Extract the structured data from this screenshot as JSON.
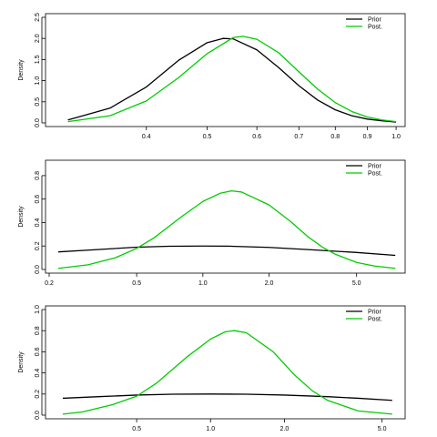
{
  "chart_data": [
    {
      "type": "line",
      "ylabel": "Density",
      "xlim": [
        0.28,
        1.02
      ],
      "ylim": [
        0,
        2.5
      ],
      "x_scale": "log",
      "xticks": [
        0.4,
        0.5,
        0.6,
        0.7,
        0.8,
        0.9,
        1.0
      ],
      "xtick_labels": [
        "0.4",
        "0.5",
        "0.6",
        "0.7",
        "0.8",
        "0.9",
        "1.0"
      ],
      "yticks": [
        0,
        0.5,
        1.0,
        1.5,
        2.0,
        2.5
      ],
      "ytick_labels": [
        "0.0",
        "0.5",
        "1.0",
        "1.5",
        "2.0",
        "2.5"
      ],
      "legend": {
        "position": "top-right",
        "entries": [
          "Prior",
          "Post."
        ]
      },
      "series": [
        {
          "name": "Prior",
          "color": "#000000",
          "x": [
            0.3,
            0.35,
            0.4,
            0.45,
            0.5,
            0.53,
            0.55,
            0.6,
            0.65,
            0.7,
            0.75,
            0.8,
            0.85,
            0.9,
            0.95,
            1.0
          ],
          "y": [
            0.07,
            0.35,
            0.85,
            1.48,
            1.9,
            2.0,
            1.99,
            1.73,
            1.31,
            0.88,
            0.54,
            0.31,
            0.17,
            0.09,
            0.05,
            0.02
          ]
        },
        {
          "name": "Post.",
          "color": "#00cc00",
          "x": [
            0.3,
            0.35,
            0.4,
            0.45,
            0.5,
            0.55,
            0.57,
            0.6,
            0.65,
            0.7,
            0.75,
            0.8,
            0.85,
            0.9,
            0.95,
            1.0
          ],
          "y": [
            0.03,
            0.17,
            0.52,
            1.07,
            1.64,
            2.02,
            2.05,
            1.98,
            1.66,
            1.21,
            0.8,
            0.48,
            0.27,
            0.14,
            0.07,
            0.03
          ]
        }
      ]
    },
    {
      "type": "line",
      "ylabel": "Density",
      "xlim": [
        0.2,
        8.0
      ],
      "ylim": [
        0,
        0.9
      ],
      "x_scale": "log",
      "xticks": [
        0.2,
        0.5,
        1.0,
        2.0,
        5.0
      ],
      "xtick_labels": [
        "0.2",
        "0.5",
        "1.0",
        "2.0",
        "5.0"
      ],
      "yticks": [
        0,
        0.2,
        0.4,
        0.6,
        0.8
      ],
      "ytick_labels": [
        "0.0",
        "0.2",
        "0.4",
        "0.6",
        "0.8"
      ],
      "legend": {
        "position": "top-right",
        "entries": [
          "Prior",
          "Post."
        ]
      },
      "series": [
        {
          "name": "Prior",
          "color": "#000000",
          "x": [
            0.22,
            0.3,
            0.5,
            0.7,
            1.0,
            1.3,
            2.0,
            3.0,
            5.0,
            7.5
          ],
          "y": [
            0.15,
            0.165,
            0.19,
            0.198,
            0.2,
            0.199,
            0.188,
            0.17,
            0.145,
            0.12
          ]
        },
        {
          "name": "Post.",
          "color": "#00cc00",
          "x": [
            0.22,
            0.3,
            0.4,
            0.5,
            0.6,
            0.8,
            1.0,
            1.2,
            1.35,
            1.5,
            2.0,
            2.5,
            3.0,
            3.5,
            4.0,
            5.0,
            6.0,
            7.5
          ],
          "y": [
            0.01,
            0.04,
            0.1,
            0.18,
            0.27,
            0.45,
            0.58,
            0.65,
            0.67,
            0.66,
            0.55,
            0.41,
            0.28,
            0.19,
            0.13,
            0.06,
            0.03,
            0.01
          ]
        }
      ]
    },
    {
      "type": "line",
      "ylabel": "Density",
      "xlim": [
        0.22,
        6.0
      ],
      "ylim": [
        0,
        1.0
      ],
      "x_scale": "log",
      "xticks": [
        0.5,
        1.0,
        2.0,
        5.0
      ],
      "xtick_labels": [
        "0.5",
        "1.0",
        "2.0",
        "5.0"
      ],
      "yticks": [
        0,
        0.2,
        0.4,
        0.6,
        0.8,
        1.0
      ],
      "ytick_labels": [
        "0.0",
        "0.2",
        "0.4",
        "0.6",
        "0.8",
        "1.0"
      ],
      "legend": {
        "position": "top-right",
        "entries": [
          "Prior",
          "Post."
        ]
      },
      "series": [
        {
          "name": "Prior",
          "color": "#000000",
          "x": [
            0.25,
            0.35,
            0.5,
            0.7,
            1.0,
            1.4,
            2.0,
            3.0,
            4.0,
            5.5
          ],
          "y": [
            0.16,
            0.175,
            0.19,
            0.198,
            0.2,
            0.198,
            0.19,
            0.175,
            0.16,
            0.14
          ]
        },
        {
          "name": "Post.",
          "color": "#00cc00",
          "x": [
            0.25,
            0.3,
            0.4,
            0.5,
            0.6,
            0.8,
            1.0,
            1.15,
            1.25,
            1.4,
            1.8,
            2.2,
            2.6,
            3.0,
            4.0,
            5.5
          ],
          "y": [
            0.01,
            0.03,
            0.1,
            0.18,
            0.3,
            0.55,
            0.72,
            0.79,
            0.8,
            0.78,
            0.6,
            0.38,
            0.23,
            0.14,
            0.04,
            0.01
          ]
        }
      ]
    }
  ]
}
